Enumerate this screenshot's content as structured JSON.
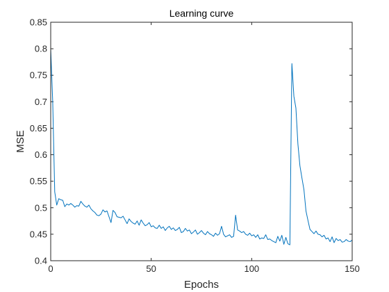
{
  "chart_data": {
    "type": "line",
    "title": "Learning curve",
    "xlabel": "Epochs",
    "ylabel": "MSE",
    "xlim": [
      0,
      150
    ],
    "ylim": [
      0.4,
      0.85
    ],
    "xticks": [
      "0",
      "50",
      "100",
      "150"
    ],
    "yticks": [
      "0.4",
      "0.45",
      "0.5",
      "0.55",
      "0.6",
      "0.65",
      "0.7",
      "0.75",
      "0.8",
      "0.85"
    ],
    "grid": false,
    "line_color": "#0072BD",
    "series": [
      {
        "values": [
          0.8,
          0.7,
          0.53,
          0.505,
          0.517,
          0.515,
          0.514,
          0.502,
          0.507,
          0.505,
          0.508,
          0.505,
          0.501,
          0.504,
          0.503,
          0.512,
          0.507,
          0.503,
          0.501,
          0.505,
          0.498,
          0.494,
          0.491,
          0.486,
          0.485,
          0.488,
          0.496,
          0.492,
          0.494,
          0.483,
          0.472,
          0.495,
          0.491,
          0.483,
          0.482,
          0.481,
          0.484,
          0.477,
          0.47,
          0.479,
          0.474,
          0.471,
          0.469,
          0.475,
          0.467,
          0.477,
          0.471,
          0.466,
          0.468,
          0.472,
          0.464,
          0.466,
          0.462,
          0.461,
          0.467,
          0.461,
          0.464,
          0.457,
          0.462,
          0.465,
          0.459,
          0.462,
          0.457,
          0.459,
          0.463,
          0.453,
          0.455,
          0.461,
          0.456,
          0.458,
          0.451,
          0.454,
          0.458,
          0.45,
          0.453,
          0.457,
          0.452,
          0.449,
          0.455,
          0.451,
          0.449,
          0.446,
          0.452,
          0.448,
          0.451,
          0.465,
          0.45,
          0.445,
          0.447,
          0.449,
          0.444,
          0.446,
          0.486,
          0.458,
          0.456,
          0.453,
          0.455,
          0.45,
          0.448,
          0.452,
          0.447,
          0.449,
          0.444,
          0.449,
          0.441,
          0.443,
          0.442,
          0.449,
          0.44,
          0.441,
          0.438,
          0.436,
          0.434,
          0.446,
          0.437,
          0.448,
          0.431,
          0.444,
          0.432,
          0.43,
          0.772,
          0.71,
          0.688,
          0.62,
          0.579,
          0.556,
          0.534,
          0.494,
          0.476,
          0.459,
          0.455,
          0.451,
          0.456,
          0.45,
          0.449,
          0.445,
          0.448,
          0.441,
          0.443,
          0.436,
          0.445,
          0.434,
          0.442,
          0.438,
          0.44,
          0.435,
          0.436,
          0.44,
          0.437,
          0.436,
          0.439
        ]
      }
    ]
  }
}
